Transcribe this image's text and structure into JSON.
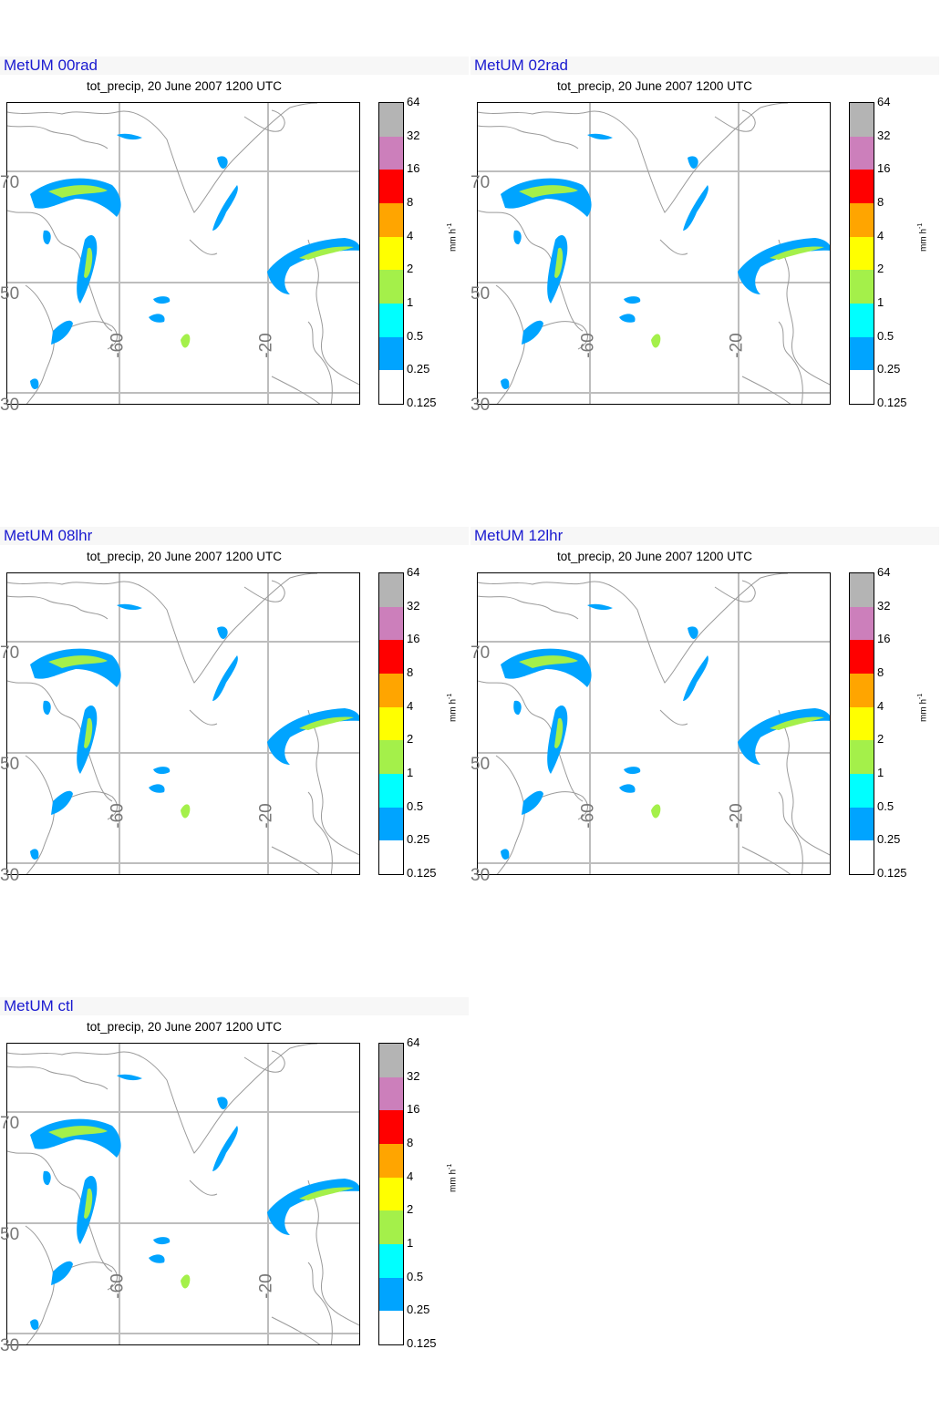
{
  "panels": [
    {
      "run_label": "MetUM 00rad",
      "subtitle": "tot_precip, 20 June 2007 1200 UTC"
    },
    {
      "run_label": "MetUM 02rad",
      "subtitle": "tot_precip, 20 June 2007 1200 UTC"
    },
    {
      "run_label": "MetUM 08lhr",
      "subtitle": "tot_precip, 20 June 2007 1200 UTC"
    },
    {
      "run_label": "MetUM 12lhr",
      "subtitle": "tot_precip, 20 June 2007 1200 UTC"
    },
    {
      "run_label": "MetUM ctl",
      "subtitle": "tot_precip, 20 June 2007 1200 UTC"
    }
  ],
  "map": {
    "lat_labels": [
      "70",
      "50",
      "30"
    ],
    "lon_labels": [
      "-60",
      "-20"
    ]
  },
  "colorbar": {
    "unit_text": "mm h",
    "unit_exponent": "-1",
    "levels": [
      "64",
      "32",
      "16",
      "8",
      "4",
      "2",
      "1",
      "0.5",
      "0.25",
      "0.125"
    ],
    "colors": [
      "#b4b4b4",
      "#cc7fbb",
      "#ff0000",
      "#ffa500",
      "#ffff00",
      "#a4f04a",
      "#00ffff",
      "#00a4ff",
      "#ffffff"
    ]
  }
}
